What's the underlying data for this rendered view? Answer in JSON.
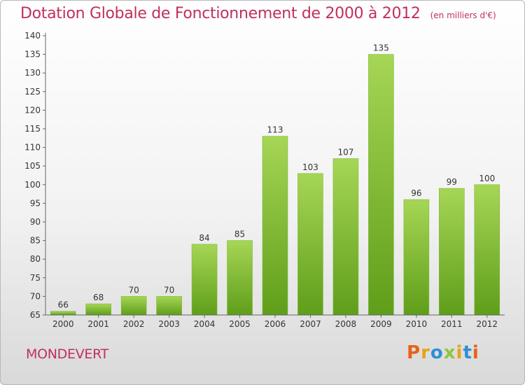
{
  "header": {
    "title": "Dotation Globale de Fonctionnement de 2000 à 2012",
    "unit": "(en milliers d'€)"
  },
  "footer": {
    "commune": "MONDEVERT",
    "brand": "Proxiti",
    "brand_colors": [
      "#e8621a",
      "#e8a31a",
      "#2e8fd6",
      "#8dc63f",
      "#e8a31a",
      "#2e8fd6",
      "#e8621a"
    ]
  },
  "colors": {
    "bar_top": "#a6d655",
    "bar_bottom": "#5f9e1a",
    "axis": "#666666",
    "text": "#333333",
    "accent": "#c0305a"
  },
  "chart_data": {
    "type": "bar",
    "categories": [
      "2000",
      "2001",
      "2002",
      "2003",
      "2004",
      "2005",
      "2006",
      "2007",
      "2008",
      "2009",
      "2010",
      "2011",
      "2012"
    ],
    "values": [
      66,
      68,
      70,
      70,
      84,
      85,
      113,
      103,
      107,
      135,
      96,
      99,
      100
    ],
    "ylim": [
      65,
      140
    ],
    "yticks": [
      65,
      70,
      75,
      80,
      85,
      90,
      95,
      100,
      105,
      110,
      115,
      120,
      125,
      130,
      135,
      140
    ],
    "grid": false,
    "legend": "none"
  }
}
